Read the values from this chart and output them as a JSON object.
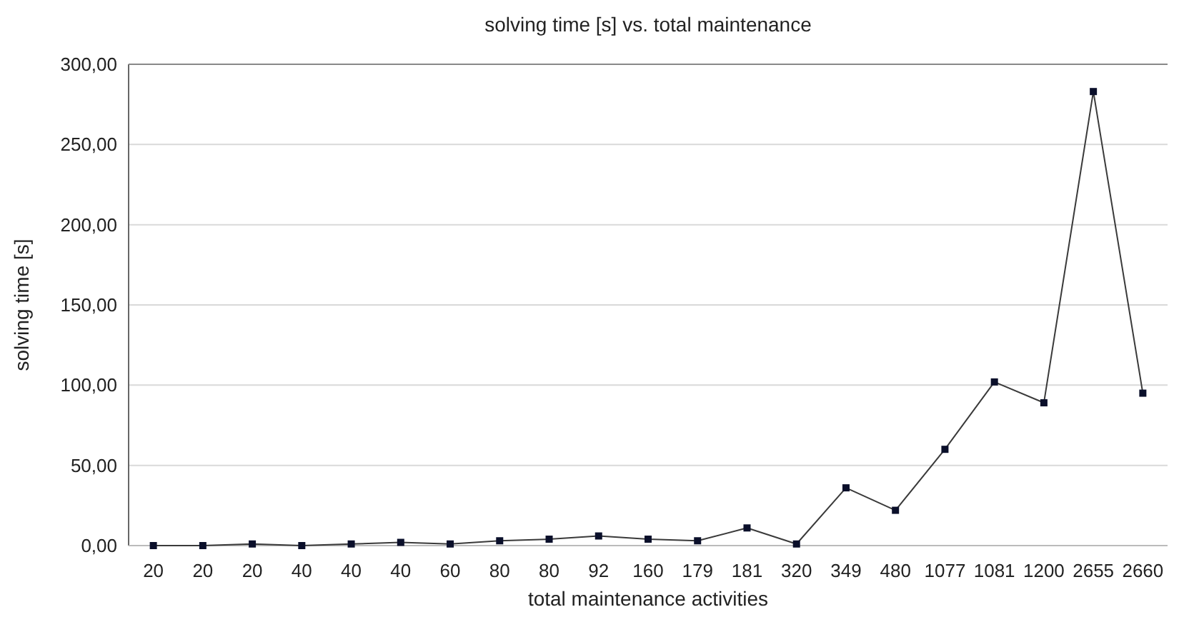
{
  "chart_data": {
    "type": "line",
    "title": "solving time [s] vs. total maintenance",
    "xlabel": "total maintenance activities",
    "ylabel": "solving time [s]",
    "categories": [
      "20",
      "20",
      "20",
      "40",
      "40",
      "40",
      "60",
      "80",
      "80",
      "92",
      "160",
      "179",
      "181",
      "320",
      "349",
      "480",
      "1077",
      "1081",
      "1200",
      "2655",
      "2660"
    ],
    "series": [
      {
        "color": "#0a0f2a",
        "values": [
          0,
          0,
          1,
          0,
          1,
          2,
          1,
          3,
          4,
          6,
          4,
          3,
          11,
          1,
          36,
          22,
          60,
          102,
          89,
          283,
          95
        ]
      }
    ],
    "ylim": [
      0,
      300
    ],
    "yticks": [
      {
        "value": 0,
        "label": "0,00"
      },
      {
        "value": 50,
        "label": "50,00"
      },
      {
        "value": 100,
        "label": "100,00"
      },
      {
        "value": 150,
        "label": "150,00"
      },
      {
        "value": 200,
        "label": "200,00"
      },
      {
        "value": 250,
        "label": "250,00"
      },
      {
        "value": 300,
        "label": "300,00"
      }
    ],
    "grid": "y",
    "marker": "square",
    "line_style": "solid"
  }
}
